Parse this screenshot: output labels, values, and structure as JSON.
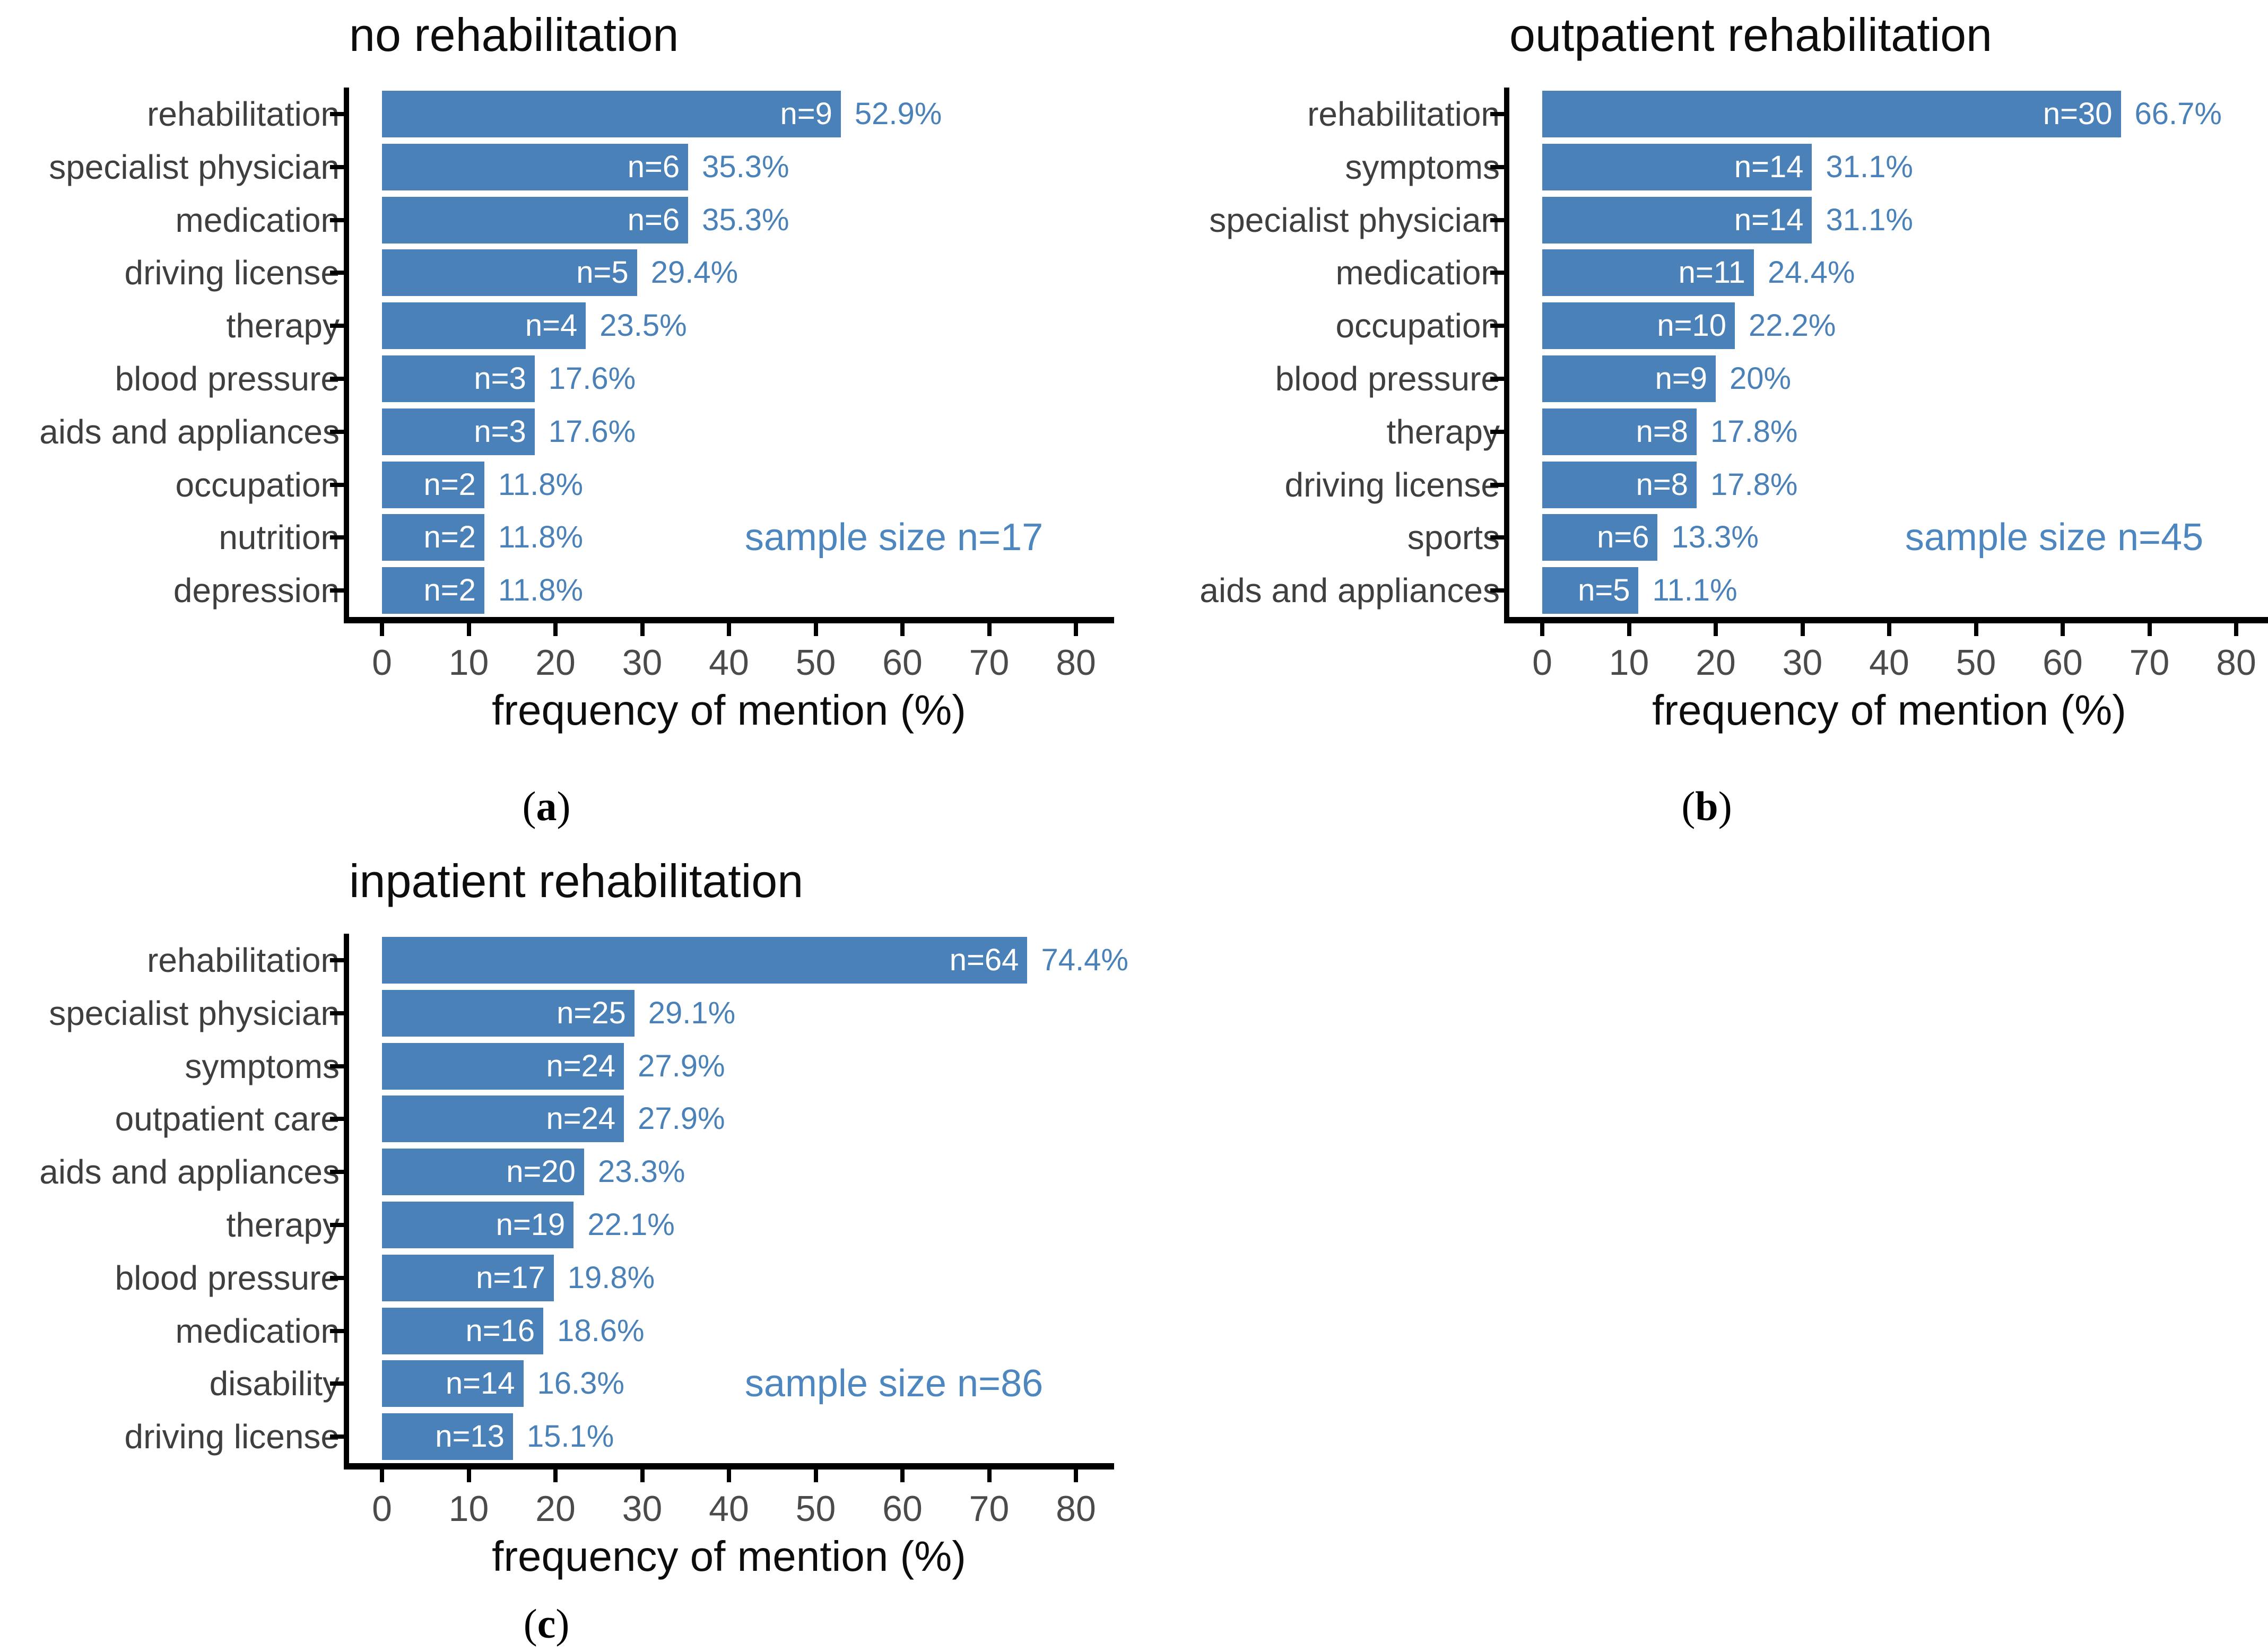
{
  "shared": {
    "xlabel": "frequency of mention (%)",
    "x_tick_labels": [
      "0",
      "10",
      "20",
      "30",
      "40",
      "50",
      "60",
      "70",
      "80"
    ],
    "colors": {
      "bar": "#4a81b8",
      "count_label": "#ffffff",
      "pct_label": "#4a81b8",
      "sample_label": "#4e87c0",
      "category_label": "#3f3f3f",
      "tick_label": "#4b4b4b",
      "axis_line": "#000000",
      "title": "#0d0d0d"
    }
  },
  "chart_data": [
    {
      "type": "bar",
      "orientation": "horizontal",
      "title": "no rehabilitation",
      "caption_letter": "a",
      "sample_size_text": "sample size n=17",
      "sample_size_n": 17,
      "xlabel": "frequency of mention (%)",
      "xlim": [
        0,
        80
      ],
      "x_ticks": [
        0,
        10,
        20,
        30,
        40,
        50,
        60,
        70,
        80
      ],
      "categories": [
        "rehabilitation",
        "specialist physician",
        "medication",
        "driving license",
        "therapy",
        "blood pressure",
        "aids and appliances",
        "occupation",
        "nutrition",
        "depression"
      ],
      "counts": [
        9,
        6,
        6,
        5,
        4,
        3,
        3,
        2,
        2,
        2
      ],
      "values_pct": [
        52.9,
        35.3,
        35.3,
        29.4,
        23.5,
        17.6,
        17.6,
        11.8,
        11.8,
        11.8
      ],
      "count_labels": [
        "n=9",
        "n=6",
        "n=6",
        "n=5",
        "n=4",
        "n=3",
        "n=3",
        "n=2",
        "n=2",
        "n=2"
      ],
      "pct_labels": [
        "52.9%",
        "35.3%",
        "35.3%",
        "29.4%",
        "23.5%",
        "17.6%",
        "17.6%",
        "11.8%",
        "11.8%",
        "11.8%"
      ]
    },
    {
      "type": "bar",
      "orientation": "horizontal",
      "title": "outpatient rehabilitation",
      "caption_letter": "b",
      "sample_size_text": "sample size n=45",
      "sample_size_n": 45,
      "xlabel": "frequency of mention (%)",
      "xlim": [
        0,
        80
      ],
      "x_ticks": [
        0,
        10,
        20,
        30,
        40,
        50,
        60,
        70,
        80
      ],
      "categories": [
        "rehabilitation",
        "symptoms",
        "specialist physician",
        "medication",
        "occupation",
        "blood pressure",
        "therapy",
        "driving license",
        "sports",
        "aids and appliances"
      ],
      "counts": [
        30,
        14,
        14,
        11,
        10,
        9,
        8,
        8,
        6,
        5
      ],
      "values_pct": [
        66.7,
        31.1,
        31.1,
        24.4,
        22.2,
        20,
        17.8,
        17.8,
        13.3,
        11.1
      ],
      "count_labels": [
        "n=30",
        "n=14",
        "n=14",
        "n=11",
        "n=10",
        "n=9",
        "n=8",
        "n=8",
        "n=6",
        "n=5"
      ],
      "pct_labels": [
        "66.7%",
        "31.1%",
        "31.1%",
        "24.4%",
        "22.2%",
        "20%",
        "17.8%",
        "17.8%",
        "13.3%",
        "11.1%"
      ]
    },
    {
      "type": "bar",
      "orientation": "horizontal",
      "title": "inpatient rehabilitation",
      "caption_letter": "c",
      "sample_size_text": "sample size n=86",
      "sample_size_n": 86,
      "xlabel": "frequency of mention (%)",
      "xlim": [
        0,
        80
      ],
      "x_ticks": [
        0,
        10,
        20,
        30,
        40,
        50,
        60,
        70,
        80
      ],
      "categories": [
        "rehabilitation",
        "specialist physician",
        "symptoms",
        "outpatient care",
        "aids and appliances",
        "therapy",
        "blood pressure",
        "medication",
        "disability",
        "driving license"
      ],
      "counts": [
        64,
        25,
        24,
        24,
        20,
        19,
        17,
        16,
        14,
        13
      ],
      "values_pct": [
        74.4,
        29.1,
        27.9,
        27.9,
        23.3,
        22.1,
        19.8,
        18.6,
        16.3,
        15.1
      ],
      "count_labels": [
        "n=64",
        "n=25",
        "n=24",
        "n=24",
        "n=20",
        "n=19",
        "n=17",
        "n=16",
        "n=14",
        "n=13"
      ],
      "pct_labels": [
        "74.4%",
        "29.1%",
        "27.9%",
        "27.9%",
        "23.3%",
        "22.1%",
        "19.8%",
        "18.6%",
        "16.3%",
        "15.1%"
      ]
    }
  ]
}
